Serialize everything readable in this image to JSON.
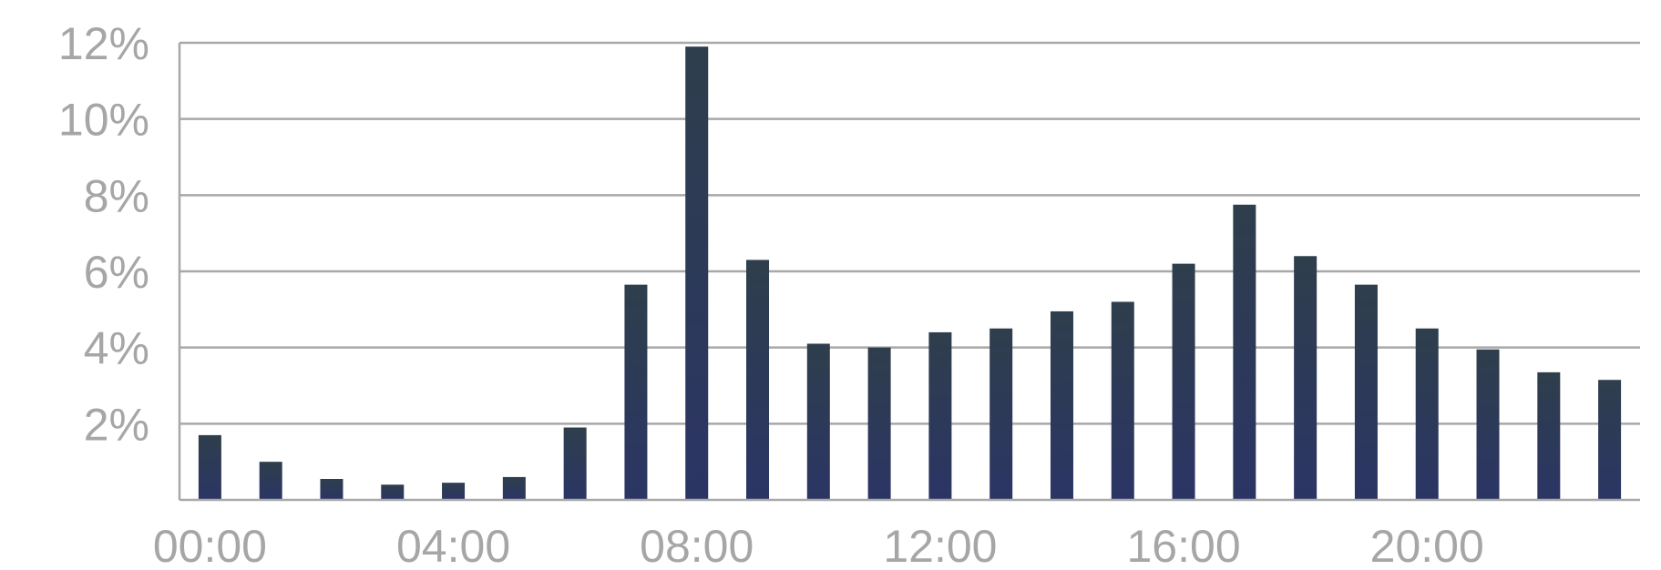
{
  "chart_data": {
    "type": "bar",
    "categories": [
      "00:00",
      "01:00",
      "02:00",
      "03:00",
      "04:00",
      "05:00",
      "06:00",
      "07:00",
      "08:00",
      "09:00",
      "10:00",
      "11:00",
      "12:00",
      "13:00",
      "14:00",
      "15:00",
      "16:00",
      "17:00",
      "18:00",
      "19:00",
      "20:00",
      "21:00",
      "22:00",
      "23:00"
    ],
    "values": [
      1.7,
      1.0,
      0.55,
      0.4,
      0.45,
      0.6,
      1.9,
      5.65,
      11.9,
      6.3,
      4.1,
      4.0,
      4.4,
      4.5,
      4.95,
      5.2,
      6.2,
      7.75,
      6.4,
      5.65,
      4.5,
      3.95,
      3.35,
      3.15
    ],
    "x_tick_labels": [
      "00:00",
      "04:00",
      "08:00",
      "12:00",
      "16:00",
      "20:00"
    ],
    "x_tick_indices": [
      0,
      4,
      8,
      12,
      16,
      20
    ],
    "y_tick_labels": [
      "2%",
      "4%",
      "6%",
      "8%",
      "10%",
      "12%"
    ],
    "y_tick_values": [
      2,
      4,
      6,
      8,
      10,
      12
    ],
    "ylim": [
      0,
      12
    ],
    "grid": true,
    "title": "",
    "xlabel": "",
    "ylabel": "",
    "bar_color_top": "#2e3e4c",
    "bar_color_bottom": "#2b3565",
    "grid_color": "#a8a8a8",
    "tick_label_color": "#a6a6a6"
  }
}
